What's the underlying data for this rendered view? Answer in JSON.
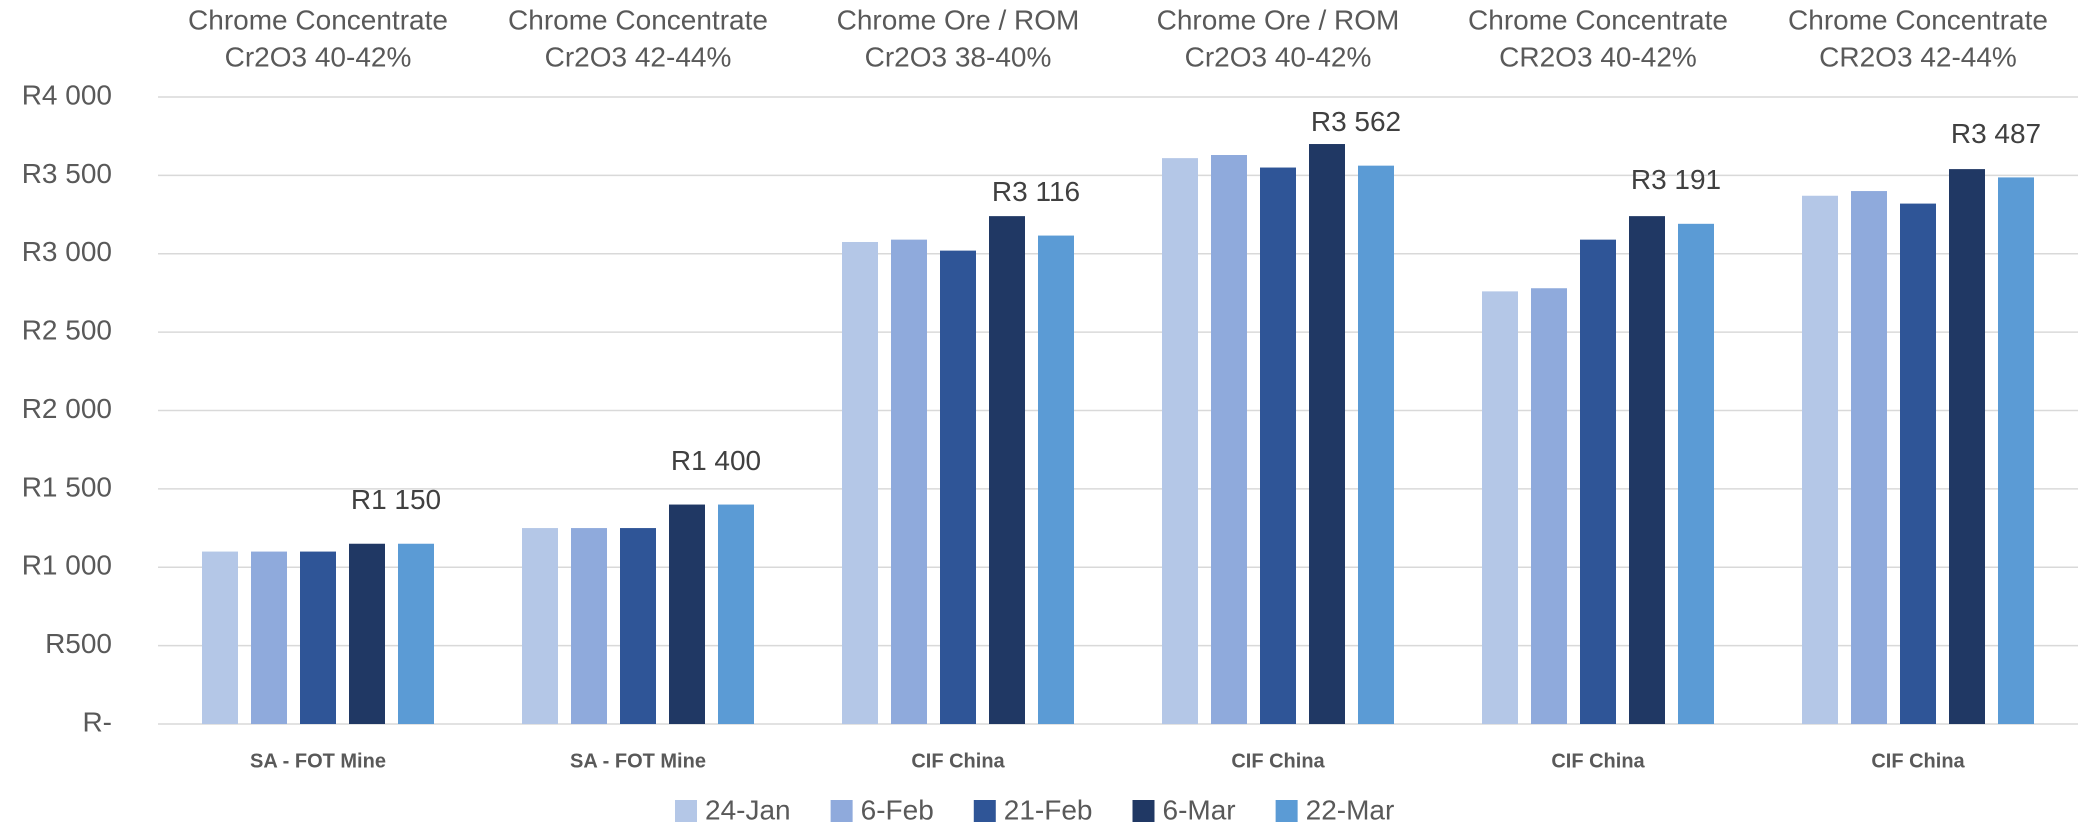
{
  "chart_data": {
    "type": "bar",
    "group_titles": [
      [
        "Chrome Concentrate",
        "Cr2O3 40-42%"
      ],
      [
        "Chrome Concentrate",
        "Cr2O3 42-44%"
      ],
      [
        "Chrome Ore / ROM",
        "Cr2O3 38-40%"
      ],
      [
        "Chrome Ore / ROM",
        "Cr2O3 40-42%"
      ],
      [
        "Chrome Concentrate",
        "CR2O3 40-42%"
      ],
      [
        "Chrome Concentrate",
        "CR2O3 42-44%"
      ]
    ],
    "categories": [
      "SA - FOT Mine",
      "SA - FOT Mine",
      "CIF China",
      "CIF China",
      "CIF China",
      "CIF China"
    ],
    "series": [
      {
        "name": "24-Jan",
        "color": "#b4c7e7",
        "values": [
          1100,
          1250,
          3075,
          3610,
          2760,
          3370
        ]
      },
      {
        "name": "6-Feb",
        "color": "#8faadc",
        "values": [
          1100,
          1250,
          3090,
          3630,
          2780,
          3400
        ]
      },
      {
        "name": "21-Feb",
        "color": "#2f5597",
        "values": [
          1100,
          1250,
          3020,
          3550,
          3090,
          3320
        ]
      },
      {
        "name": "6-Mar",
        "color": "#203864",
        "values": [
          1150,
          1400,
          3240,
          3700,
          3240,
          3540
        ]
      },
      {
        "name": "22-Mar",
        "color": "#5b9bd5",
        "values": [
          1150,
          1400,
          3116,
          3562,
          3191,
          3487
        ],
        "value_labels": [
          "R1 150",
          "R1 400",
          "R3 116",
          "R3 562",
          "R3 191",
          "R3 487"
        ]
      }
    ],
    "ylim": [
      0,
      4000
    ],
    "yticks": [
      {
        "value": 0,
        "label": "R-"
      },
      {
        "value": 500,
        "label": "R500"
      },
      {
        "value": 1000,
        "label": "R1 000"
      },
      {
        "value": 1500,
        "label": "R1 500"
      },
      {
        "value": 2000,
        "label": "R2 000"
      },
      {
        "value": 2500,
        "label": "R2 500"
      },
      {
        "value": 3000,
        "label": "R3 000"
      },
      {
        "value": 3500,
        "label": "R3 500"
      },
      {
        "value": 4000,
        "label": "R4 000"
      }
    ],
    "grid": true
  }
}
